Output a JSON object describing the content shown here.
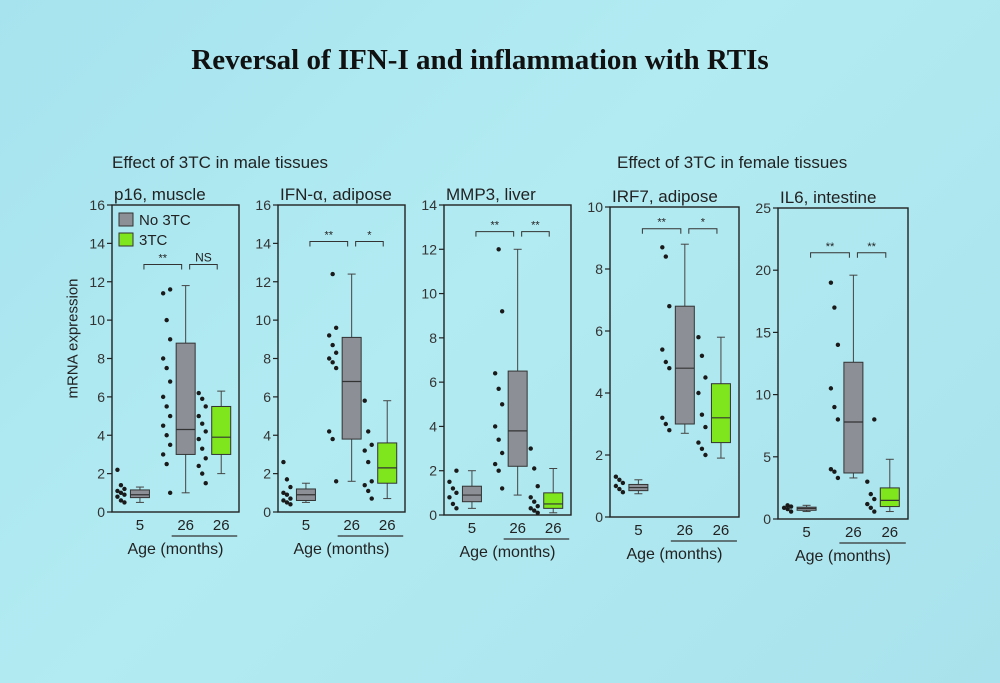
{
  "slide_title": "Reversal of IFN-I and inflammation with RTIs",
  "section_male": "Effect of 3TC in male tissues",
  "section_female": "Effect of 3TC in female tissues",
  "y_axis_label": "mRNA expression",
  "legend": [
    {
      "name": "No 3TC",
      "color": "#8c8f96"
    },
    {
      "name": "3TC",
      "color": "#7fe51c"
    }
  ],
  "colors": {
    "no3tc": "#8c8f96",
    "tc3": "#7fe51c",
    "dots": "#1a1a1a",
    "axis": "#222222"
  },
  "chart_data": [
    {
      "type": "box",
      "title": "p16, muscle",
      "xlabel": "Age (months)",
      "ylim": [
        0,
        16
      ],
      "yticks": [
        0,
        2,
        4,
        6,
        8,
        10,
        12,
        14,
        16
      ],
      "categories": [
        "5",
        "26",
        "26"
      ],
      "boxes": [
        {
          "group": "No 3TC",
          "min": 0.5,
          "q1": 0.75,
          "median": 0.9,
          "q3": 1.15,
          "max": 1.3,
          "points": [
            0.5,
            0.6,
            0.8,
            0.9,
            1.0,
            1.1,
            1.2,
            1.4,
            2.2
          ]
        },
        {
          "group": "No 3TC",
          "min": 1.0,
          "q1": 3.0,
          "median": 4.3,
          "q3": 8.8,
          "max": 11.8,
          "points": [
            1.0,
            2.5,
            3.0,
            3.5,
            4.0,
            4.5,
            5.0,
            5.5,
            6.0,
            6.8,
            7.5,
            8.0,
            9.0,
            10.0,
            11.4,
            11.6
          ]
        },
        {
          "group": "3TC",
          "min": 2.0,
          "q1": 3.0,
          "median": 3.9,
          "q3": 5.5,
          "max": 6.3,
          "points": [
            1.5,
            2.0,
            2.4,
            2.8,
            3.3,
            3.8,
            4.2,
            4.6,
            5.0,
            5.5,
            5.9,
            6.2
          ]
        }
      ],
      "significance": [
        {
          "from": 0,
          "to": 1,
          "label": "**",
          "y": 12.9
        },
        {
          "from": 1,
          "to": 2,
          "label": "NS",
          "y": 12.9
        }
      ],
      "legend": "top-left"
    },
    {
      "type": "box",
      "title": "IFN-α, adipose",
      "xlabel": "Age (months)",
      "ylim": [
        0,
        16
      ],
      "yticks": [
        0,
        2,
        4,
        6,
        8,
        10,
        12,
        14,
        16
      ],
      "categories": [
        "5",
        "26",
        "26"
      ],
      "boxes": [
        {
          "group": "No 3TC",
          "min": 0.5,
          "q1": 0.6,
          "median": 0.9,
          "q3": 1.2,
          "max": 1.5,
          "points": [
            0.4,
            0.5,
            0.6,
            0.7,
            0.9,
            1.0,
            1.3,
            1.7,
            2.6
          ]
        },
        {
          "group": "No 3TC",
          "min": 1.6,
          "q1": 3.8,
          "median": 6.8,
          "q3": 9.1,
          "max": 12.4,
          "points": [
            1.6,
            3.8,
            4.2,
            7.5,
            7.8,
            8.0,
            8.3,
            8.7,
            9.2,
            9.6,
            12.4
          ]
        },
        {
          "group": "3TC",
          "min": 0.7,
          "q1": 1.5,
          "median": 2.3,
          "q3": 3.6,
          "max": 5.8,
          "points": [
            0.7,
            1.1,
            1.4,
            1.6,
            2.6,
            3.2,
            3.5,
            4.2,
            5.8
          ]
        }
      ],
      "significance": [
        {
          "from": 0,
          "to": 1,
          "label": "**",
          "y": 14.1
        },
        {
          "from": 1,
          "to": 2,
          "label": "*",
          "y": 14.1
        }
      ]
    },
    {
      "type": "box",
      "title": "MMP3, liver",
      "xlabel": "Age (months)",
      "ylim": [
        0,
        14
      ],
      "yticks": [
        0,
        2,
        4,
        6,
        8,
        10,
        12,
        14
      ],
      "categories": [
        "5",
        "26",
        "26"
      ],
      "boxes": [
        {
          "group": "No 3TC",
          "min": 0.3,
          "q1": 0.6,
          "median": 0.9,
          "q3": 1.3,
          "max": 2.0,
          "points": [
            0.3,
            0.5,
            0.8,
            1.0,
            1.2,
            1.5,
            2.0
          ]
        },
        {
          "group": "No 3TC",
          "min": 0.9,
          "q1": 2.2,
          "median": 3.8,
          "q3": 6.5,
          "max": 12.0,
          "points": [
            1.2,
            2.0,
            2.3,
            2.8,
            3.4,
            4.0,
            5.0,
            5.7,
            6.4,
            9.2,
            12.0
          ]
        },
        {
          "group": "3TC",
          "min": 0.1,
          "q1": 0.3,
          "median": 0.5,
          "q3": 1.0,
          "max": 2.1,
          "points": [
            0.1,
            0.2,
            0.3,
            0.4,
            0.6,
            0.8,
            1.3,
            2.1,
            3.0
          ]
        }
      ],
      "significance": [
        {
          "from": 0,
          "to": 1,
          "label": "**",
          "y": 12.8
        },
        {
          "from": 1,
          "to": 2,
          "label": "**",
          "y": 12.8
        }
      ]
    },
    {
      "type": "box",
      "title": "IRF7, adipose",
      "xlabel": "Age (months)",
      "ylim": [
        0,
        10
      ],
      "yticks": [
        0,
        2,
        4,
        6,
        8,
        10
      ],
      "categories": [
        "5",
        "26",
        "26"
      ],
      "boxes": [
        {
          "group": "No 3TC",
          "min": 0.75,
          "q1": 0.85,
          "median": 0.95,
          "q3": 1.05,
          "max": 1.2,
          "points": [
            0.8,
            0.9,
            1.0,
            1.1,
            1.2,
            1.3
          ]
        },
        {
          "group": "No 3TC",
          "min": 2.7,
          "q1": 3.0,
          "median": 4.8,
          "q3": 6.8,
          "max": 8.8,
          "points": [
            2.8,
            3.0,
            3.2,
            4.8,
            5.0,
            5.4,
            6.8,
            8.4,
            8.7
          ]
        },
        {
          "group": "3TC",
          "min": 1.9,
          "q1": 2.4,
          "median": 3.2,
          "q3": 4.3,
          "max": 5.8,
          "points": [
            2.0,
            2.2,
            2.4,
            2.9,
            3.3,
            4.0,
            4.5,
            5.2,
            5.8
          ]
        }
      ],
      "significance": [
        {
          "from": 0,
          "to": 1,
          "label": "**",
          "y": 9.3
        },
        {
          "from": 1,
          "to": 2,
          "label": "*",
          "y": 9.3
        }
      ]
    },
    {
      "type": "box",
      "title": "IL6, intestine",
      "xlabel": "Age (months)",
      "ylim": [
        0,
        25
      ],
      "yticks": [
        0,
        5,
        10,
        15,
        20,
        25
      ],
      "categories": [
        "5",
        "26",
        "26"
      ],
      "boxes": [
        {
          "group": "No 3TC",
          "min": 0.6,
          "q1": 0.7,
          "median": 0.85,
          "q3": 0.95,
          "max": 1.1,
          "points": [
            0.6,
            0.8,
            0.9,
            1.0,
            1.1
          ]
        },
        {
          "group": "No 3TC",
          "min": 3.3,
          "q1": 3.7,
          "median": 7.8,
          "q3": 12.6,
          "max": 19.6,
          "points": [
            3.3,
            3.8,
            4.0,
            8.0,
            9.0,
            10.5,
            14.0,
            17.0,
            19.0
          ]
        },
        {
          "group": "3TC",
          "min": 0.6,
          "q1": 1.0,
          "median": 1.5,
          "q3": 2.5,
          "max": 4.8,
          "points": [
            0.6,
            0.9,
            1.2,
            1.6,
            2.0,
            3.0,
            8.0
          ]
        }
      ],
      "significance": [
        {
          "from": 0,
          "to": 1,
          "label": "**",
          "y": 21.4
        },
        {
          "from": 1,
          "to": 2,
          "label": "**",
          "y": 21.4
        }
      ]
    }
  ]
}
